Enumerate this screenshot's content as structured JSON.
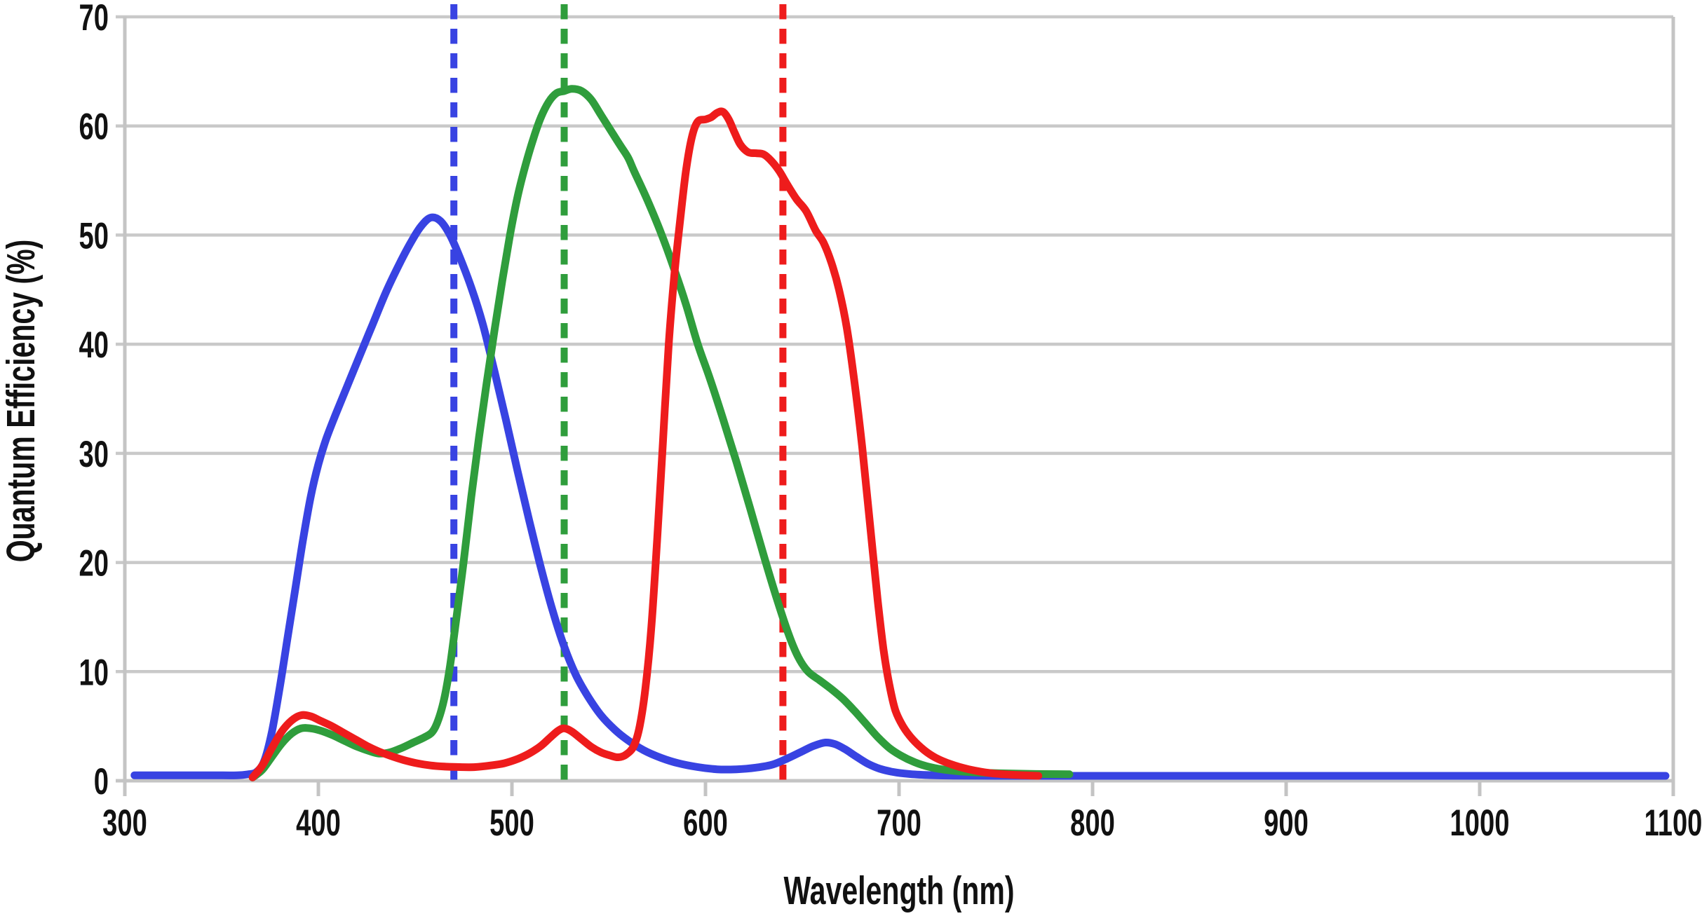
{
  "chart_data": {
    "type": "line",
    "title": "",
    "xlabel": "Wavelength (nm)",
    "ylabel": "Quantum Efficiency (%)",
    "xlim": [
      300,
      1100
    ],
    "ylim": [
      0,
      70
    ],
    "x_ticks": [
      300,
      400,
      500,
      600,
      700,
      800,
      900,
      1000,
      1100
    ],
    "y_ticks": [
      0,
      10,
      20,
      30,
      40,
      50,
      60,
      70
    ],
    "grid": "horizontal-only",
    "legend": "none",
    "colors": {
      "blue_channel": "#3843e2",
      "green_channel": "#2f9d3c",
      "red_channel": "#ee1c1c",
      "grid": "#c9c9c9",
      "axis": "#c4c4c4",
      "text": "#111111",
      "background": "#ffffff"
    },
    "reference_lines": [
      {
        "name": "blue-dashed-marker",
        "wavelength_nm": 470,
        "color": "#3843e2",
        "style": "dashed"
      },
      {
        "name": "green-dashed-marker",
        "wavelength_nm": 527,
        "color": "#2f9d3c",
        "style": "dashed"
      },
      {
        "name": "red-dashed-marker",
        "wavelength_nm": 640,
        "color": "#ee1c1c",
        "style": "dashed"
      }
    ],
    "series": [
      {
        "name": "blue-channel-qe",
        "color": "#3843e2",
        "peak": {
          "wavelength_nm": 458,
          "qe_percent": 51.6
        },
        "points": [
          [
            305,
            0.5
          ],
          [
            325,
            0.5
          ],
          [
            345,
            0.5
          ],
          [
            358,
            0.5
          ],
          [
            364,
            0.6
          ],
          [
            368,
            0.8
          ],
          [
            372,
            1.8
          ],
          [
            376,
            4.5
          ],
          [
            380,
            8.5
          ],
          [
            384,
            13
          ],
          [
            388,
            17.5
          ],
          [
            392,
            22
          ],
          [
            396,
            26
          ],
          [
            400,
            29
          ],
          [
            404,
            31.3
          ],
          [
            409,
            33.6
          ],
          [
            415,
            36.2
          ],
          [
            421,
            38.8
          ],
          [
            428,
            41.8
          ],
          [
            435,
            44.8
          ],
          [
            442,
            47.4
          ],
          [
            448,
            49.4
          ],
          [
            453,
            50.8
          ],
          [
            458,
            51.6
          ],
          [
            463,
            51.3
          ],
          [
            468,
            50
          ],
          [
            473,
            48
          ],
          [
            479,
            45.2
          ],
          [
            485,
            41.8
          ],
          [
            491,
            37.5
          ],
          [
            497,
            33
          ],
          [
            503,
            28.3
          ],
          [
            509,
            23.8
          ],
          [
            515,
            19.5
          ],
          [
            521,
            15.6
          ],
          [
            527,
            12.3
          ],
          [
            533,
            9.7
          ],
          [
            539,
            7.8
          ],
          [
            546,
            6
          ],
          [
            553,
            4.7
          ],
          [
            560,
            3.7
          ],
          [
            568,
            2.8
          ],
          [
            577,
            2.1
          ],
          [
            586,
            1.6
          ],
          [
            596,
            1.25
          ],
          [
            606,
            1.05
          ],
          [
            616,
            1.05
          ],
          [
            626,
            1.2
          ],
          [
            635,
            1.5
          ],
          [
            643,
            2.1
          ],
          [
            650,
            2.7
          ],
          [
            656,
            3.2
          ],
          [
            662,
            3.5
          ],
          [
            667,
            3.35
          ],
          [
            672,
            2.9
          ],
          [
            678,
            2.2
          ],
          [
            684,
            1.55
          ],
          [
            690,
            1.1
          ],
          [
            697,
            0.8
          ],
          [
            705,
            0.62
          ],
          [
            715,
            0.52
          ],
          [
            728,
            0.47
          ],
          [
            750,
            0.45
          ],
          [
            790,
            0.45
          ],
          [
            840,
            0.45
          ],
          [
            900,
            0.45
          ],
          [
            960,
            0.45
          ],
          [
            1020,
            0.45
          ],
          [
            1060,
            0.45
          ],
          [
            1096,
            0.45
          ]
        ]
      },
      {
        "name": "green-channel-qe",
        "color": "#2f9d3c",
        "peak": {
          "wavelength_nm": 531,
          "qe_percent": 63.4
        },
        "points": [
          [
            366,
            0.3
          ],
          [
            371,
            1
          ],
          [
            376,
            2.2
          ],
          [
            381,
            3.4
          ],
          [
            386,
            4.3
          ],
          [
            391,
            4.8
          ],
          [
            396,
            4.8
          ],
          [
            401,
            4.6
          ],
          [
            407,
            4.2
          ],
          [
            413,
            3.7
          ],
          [
            419,
            3.2
          ],
          [
            425,
            2.8
          ],
          [
            431,
            2.5
          ],
          [
            437,
            2.6
          ],
          [
            443,
            3
          ],
          [
            449,
            3.5
          ],
          [
            455,
            4
          ],
          [
            459,
            4.5
          ],
          [
            462,
            5.6
          ],
          [
            465,
            7.5
          ],
          [
            468,
            10.5
          ],
          [
            471,
            14.5
          ],
          [
            475,
            20
          ],
          [
            479,
            26
          ],
          [
            483,
            31.5
          ],
          [
            487,
            36.5
          ],
          [
            491,
            41.3
          ],
          [
            495,
            45.8
          ],
          [
            499,
            50
          ],
          [
            503,
            53.6
          ],
          [
            507,
            56.4
          ],
          [
            511,
            58.8
          ],
          [
            515,
            60.8
          ],
          [
            519,
            62.2
          ],
          [
            523,
            63
          ],
          [
            527,
            63.2
          ],
          [
            531,
            63.4
          ],
          [
            536,
            63.2
          ],
          [
            541,
            62.4
          ],
          [
            546,
            61
          ],
          [
            551,
            59.6
          ],
          [
            556,
            58.2
          ],
          [
            560,
            57.1
          ],
          [
            563,
            55.9
          ],
          [
            570,
            53.2
          ],
          [
            577,
            50.2
          ],
          [
            584,
            46.8
          ],
          [
            590,
            43.6
          ],
          [
            596,
            40
          ],
          [
            602,
            37
          ],
          [
            609,
            33.2
          ],
          [
            616,
            29.2
          ],
          [
            623,
            25
          ],
          [
            630,
            20.7
          ],
          [
            637,
            16.6
          ],
          [
            643,
            13.4
          ],
          [
            648,
            11.3
          ],
          [
            653,
            10
          ],
          [
            659,
            9.2
          ],
          [
            665,
            8.4
          ],
          [
            671,
            7.5
          ],
          [
            677,
            6.4
          ],
          [
            683,
            5.2
          ],
          [
            689,
            4
          ],
          [
            695,
            3
          ],
          [
            701,
            2.3
          ],
          [
            708,
            1.7
          ],
          [
            716,
            1.25
          ],
          [
            726,
            0.95
          ],
          [
            738,
            0.78
          ],
          [
            752,
            0.68
          ],
          [
            768,
            0.62
          ],
          [
            788,
            0.6
          ]
        ]
      },
      {
        "name": "red-channel-qe",
        "color": "#ee1c1c",
        "peak": {
          "wavelength_nm": 609,
          "qe_percent": 61.3
        },
        "points": [
          [
            366,
            0.3
          ],
          [
            371,
            1.4
          ],
          [
            376,
            3
          ],
          [
            381,
            4.5
          ],
          [
            386,
            5.5
          ],
          [
            391,
            6
          ],
          [
            396,
            5.9
          ],
          [
            401,
            5.5
          ],
          [
            407,
            5
          ],
          [
            413,
            4.4
          ],
          [
            419,
            3.8
          ],
          [
            425,
            3.2
          ],
          [
            431,
            2.7
          ],
          [
            437,
            2.3
          ],
          [
            444,
            1.9
          ],
          [
            451,
            1.6
          ],
          [
            458,
            1.4
          ],
          [
            465,
            1.3
          ],
          [
            473,
            1.25
          ],
          [
            481,
            1.25
          ],
          [
            489,
            1.4
          ],
          [
            496,
            1.6
          ],
          [
            503,
            2
          ],
          [
            509,
            2.5
          ],
          [
            515,
            3.2
          ],
          [
            520,
            4
          ],
          [
            524,
            4.6
          ],
          [
            527,
            4.8
          ],
          [
            531,
            4.5
          ],
          [
            536,
            3.8
          ],
          [
            541,
            3.1
          ],
          [
            546,
            2.6
          ],
          [
            551,
            2.3
          ],
          [
            555,
            2.15
          ],
          [
            559,
            2.4
          ],
          [
            563,
            3.2
          ],
          [
            566,
            5
          ],
          [
            569,
            8.5
          ],
          [
            572,
            14
          ],
          [
            575,
            22
          ],
          [
            578,
            31
          ],
          [
            581,
            40
          ],
          [
            584,
            46.5
          ],
          [
            587,
            51.5
          ],
          [
            590,
            56
          ],
          [
            593,
            59
          ],
          [
            596,
            60.4
          ],
          [
            600,
            60.6
          ],
          [
            603,
            60.8
          ],
          [
            606,
            61.2
          ],
          [
            609,
            61.3
          ],
          [
            612,
            60.6
          ],
          [
            615,
            59.4
          ],
          [
            618,
            58.3
          ],
          [
            622,
            57.6
          ],
          [
            626,
            57.5
          ],
          [
            630,
            57.4
          ],
          [
            634,
            56.8
          ],
          [
            638,
            55.9
          ],
          [
            642,
            54.7
          ],
          [
            647,
            53.3
          ],
          [
            652,
            52.2
          ],
          [
            657,
            50.4
          ],
          [
            661,
            49.3
          ],
          [
            665,
            47.5
          ],
          [
            669,
            45
          ],
          [
            673,
            41.5
          ],
          [
            677,
            36.5
          ],
          [
            681,
            30.5
          ],
          [
            685,
            23.5
          ],
          [
            689,
            16.5
          ],
          [
            692,
            12
          ],
          [
            695,
            8.8
          ],
          [
            698,
            6.5
          ],
          [
            702,
            5
          ],
          [
            707,
            3.8
          ],
          [
            713,
            2.8
          ],
          [
            719,
            2.1
          ],
          [
            727,
            1.5
          ],
          [
            736,
            1.05
          ],
          [
            747,
            0.7
          ],
          [
            758,
            0.55
          ],
          [
            772,
            0.45
          ]
        ]
      }
    ]
  }
}
